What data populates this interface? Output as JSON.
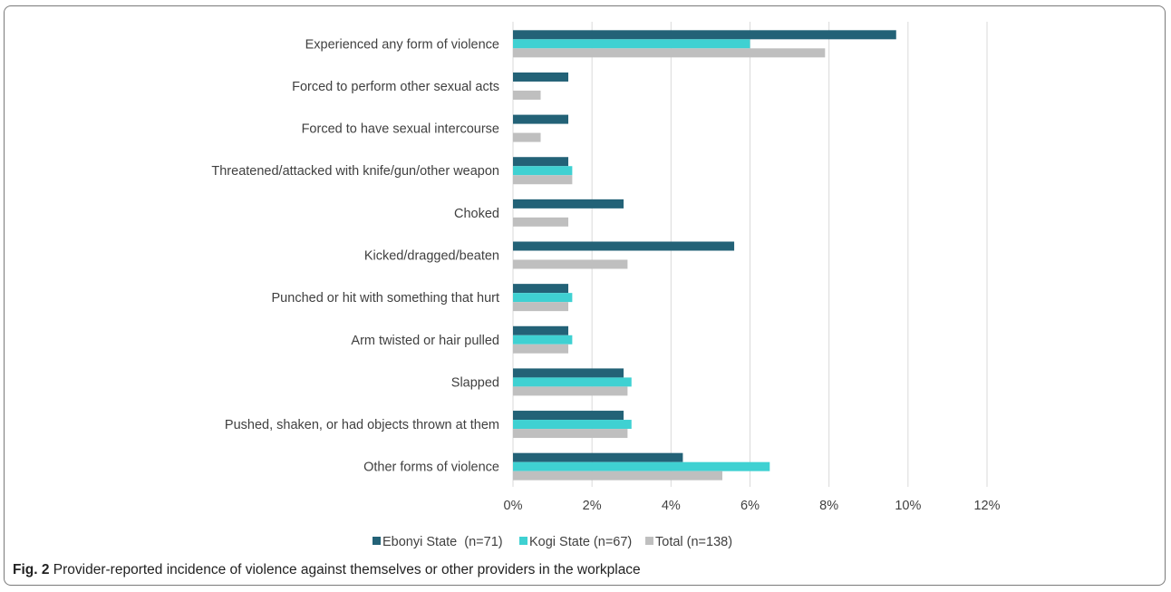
{
  "figure": {
    "caption_label": "Fig. 2",
    "caption_text": " Provider-reported incidence of violence against themselves or other providers in the workplace"
  },
  "colors": {
    "ebonyi": "#236277",
    "kogi": "#3fd1d2",
    "total": "#bfbfbf",
    "grid": "#d9d9d9"
  },
  "chart_data": {
    "type": "bar",
    "orientation": "horizontal",
    "categories": [
      "Experienced any form of violence",
      "Forced to perform other sexual acts",
      "Forced to have sexual intercourse",
      "Threatened/attacked with knife/gun/other weapon",
      "Choked",
      "Kicked/dragged/beaten",
      "Punched or hit with something that hurt",
      "Arm twisted or hair pulled",
      "Slapped",
      "Pushed, shaken, or had objects thrown at them",
      "Other forms of violence"
    ],
    "series": [
      {
        "name": "Ebonyi State  (n=71)",
        "values": [
          9.7,
          1.4,
          1.4,
          1.4,
          2.8,
          5.6,
          1.4,
          1.4,
          2.8,
          2.8,
          4.3
        ]
      },
      {
        "name": "Kogi State (n=67)",
        "values": [
          6.0,
          0,
          0,
          1.5,
          0,
          0,
          1.5,
          1.5,
          3.0,
          3.0,
          6.5
        ]
      },
      {
        "name": "Total (n=138)",
        "values": [
          7.9,
          0.7,
          0.7,
          1.5,
          1.4,
          2.9,
          1.4,
          1.4,
          2.9,
          2.9,
          5.3
        ]
      }
    ],
    "xlim": [
      0,
      12
    ],
    "xticks": [
      "0%",
      "2%",
      "4%",
      "6%",
      "8%",
      "10%",
      "12%"
    ],
    "grid": true,
    "legend_position": "bottom"
  }
}
